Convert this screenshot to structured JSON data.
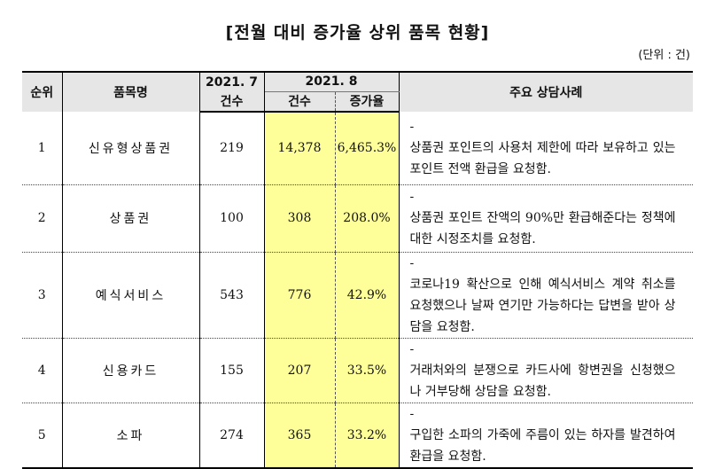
{
  "title": "[전월 대비 증가율 상위 품목 현황]",
  "unit": "(단위 : 건)",
  "header": {
    "rank": "순위",
    "item": "품목명",
    "month1": "2021. 7",
    "month2": "2021. 8",
    "count1": "건수",
    "count2": "건수",
    "rate": "증가율",
    "cases": "주요 상담사례"
  },
  "rows": [
    {
      "rank": "1",
      "item": "신유형상품권",
      "jul": "219",
      "aug": "14,378",
      "rate": "6,465.3%",
      "dash": "-",
      "desc": "상품권 포인트의 사용처 제한에 따라 보유하고 있는 포인트 전액 환급을 요청함."
    },
    {
      "rank": "2",
      "item": "상품권",
      "jul": "100",
      "aug": "308",
      "rate": "208.0%",
      "dash": "-",
      "desc": "상품권 포인트 잔액의 90%만 환급해준다는 정책에 대한 시정조치를 요청함."
    },
    {
      "rank": "3",
      "item": "예식서비스",
      "jul": "543",
      "aug": "776",
      "rate": "42.9%",
      "dash": "-",
      "desc": "코로나19 확산으로 인해 예식서비스 계약 취소를 요청했으나 날짜 연기만 가능하다는 답변을 받아 상담을 요청함."
    },
    {
      "rank": "4",
      "item": "신용카드",
      "jul": "155",
      "aug": "207",
      "rate": "33.5%",
      "dash": "-",
      "desc": "거래처와의 분쟁으로 카드사에 항변권을 신청했으나 거부당해 상담을 요청함."
    },
    {
      "rank": "5",
      "item": "소파",
      "jul": "274",
      "aug": "365",
      "rate": "33.2%",
      "dash": "-",
      "desc": "구입한 소파의 가죽에 주름이 있는 하자를 발견하여 환급을 요청함."
    }
  ]
}
